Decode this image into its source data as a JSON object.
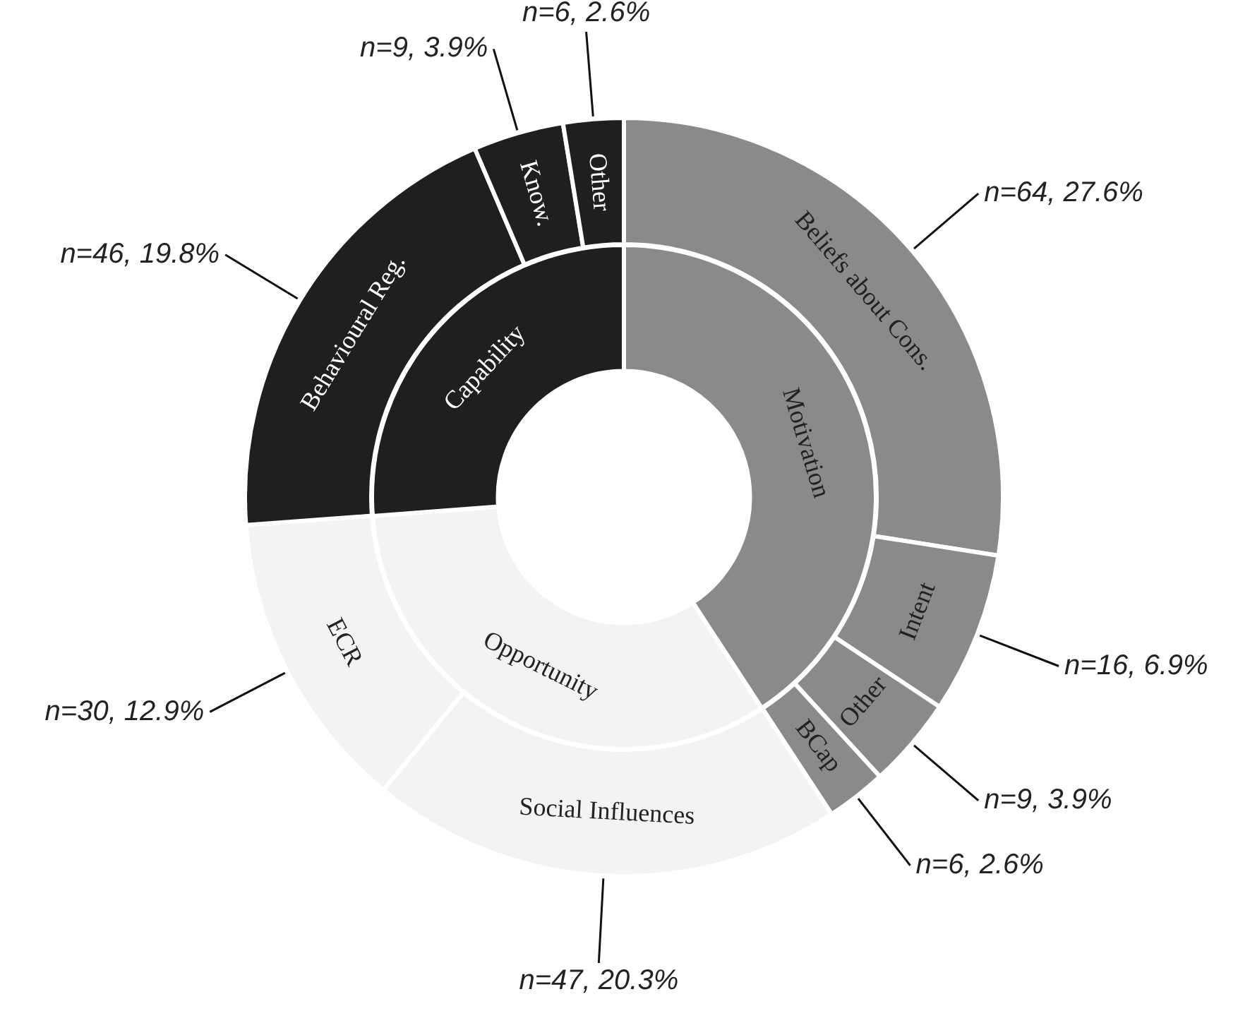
{
  "chart_data": [
    {
      "type": "donut",
      "legend": false,
      "categories": [
        "Motivation",
        "Opportunity",
        "Capability"
      ],
      "values": [
        40.8,
        33.0,
        26.2
      ],
      "colors": [
        "#8a8a8a",
        "#f2f3f3",
        "#1f1f21"
      ]
    },
    {
      "type": "donut",
      "legend": false,
      "categories": [
        "Beliefs about Cons.",
        "Intent",
        "Other",
        "BCap",
        "Social Influences",
        "ECR",
        "Behavioural Reg.",
        "Know.",
        "Other"
      ],
      "values": [
        64,
        16,
        9,
        6,
        47,
        30,
        46,
        9,
        6
      ],
      "colors": [
        "#8a8a8a",
        "#8a8a8a",
        "#8a8a8a",
        "#8a8a8a",
        "#f2f3f3",
        "#f2f3f3",
        "#1f1f21",
        "#1f1f21",
        "#1f1f21"
      ],
      "value_labels": [
        "n=64, 27.6%",
        "n=16, 6.9%",
        "n=9, 3.9%",
        "n=6, 2.6%",
        "n=47, 20.3%",
        "n=30, 12.9%",
        "n=46, 19.8%",
        "n=9, 3.9%",
        "n=6, 2.6%"
      ]
    }
  ]
}
